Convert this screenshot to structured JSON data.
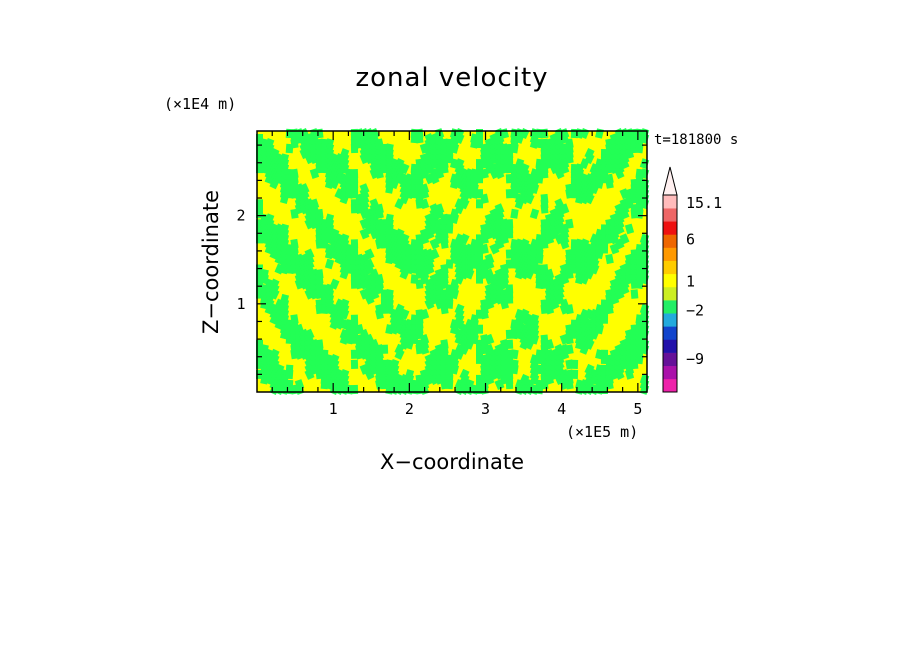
{
  "chart_data": {
    "type": "heatmap",
    "title": "zonal velocity",
    "xlabel": "X−coordinate",
    "ylabel": "Z−coordinate",
    "x_unit": "(×1E5 m)",
    "y_unit": "(×1E4 m)",
    "time_label": "t=181800 s",
    "x_range": [
      0,
      5.12
    ],
    "y_range": [
      0,
      2.96
    ],
    "x_ticks": [
      {
        "value": 1,
        "label": "1"
      },
      {
        "value": 2,
        "label": "2"
      },
      {
        "value": 3,
        "label": "3"
      },
      {
        "value": 4,
        "label": "4"
      },
      {
        "value": 5,
        "label": "5"
      }
    ],
    "y_ticks": [
      {
        "value": 1,
        "label": "1"
      },
      {
        "value": 2,
        "label": "2"
      }
    ],
    "colorbar": {
      "levels": [
        {
          "color": "#ee22aa"
        },
        {
          "color": "#aa11aa"
        },
        {
          "color": "#661199"
        },
        {
          "color": "#2211aa"
        },
        {
          "color": "#1144cc"
        },
        {
          "color": "#22aadd"
        },
        {
          "color": "#22ee66"
        },
        {
          "color": "#ccee22"
        },
        {
          "color": "#ffff00"
        },
        {
          "color": "#ffcc00"
        },
        {
          "color": "#ff9900"
        },
        {
          "color": "#ee6600"
        },
        {
          "color": "#ee1111"
        },
        {
          "color": "#ee6666"
        },
        {
          "color": "#ffbbbb"
        }
      ],
      "overflow_color": "#fff0f0",
      "labels": [
        {
          "value": 15.1,
          "label": "15.1"
        },
        {
          "value": 6,
          "label": "6"
        },
        {
          "value": 1,
          "label": "1"
        },
        {
          "value": -2,
          "label": "−2"
        },
        {
          "value": -9,
          "label": "−9"
        }
      ]
    },
    "field": {
      "dominant_values": [
        "positive (yellow)",
        "near-zero negative (green)"
      ],
      "colors": {
        "positive": "#ffff00",
        "negative": "#22ff55"
      },
      "features": "V-shaped wave beams radiating upward from sources near z≈0 at x≈2 and x≈4.4, with fine-scale streaky structure"
    }
  }
}
